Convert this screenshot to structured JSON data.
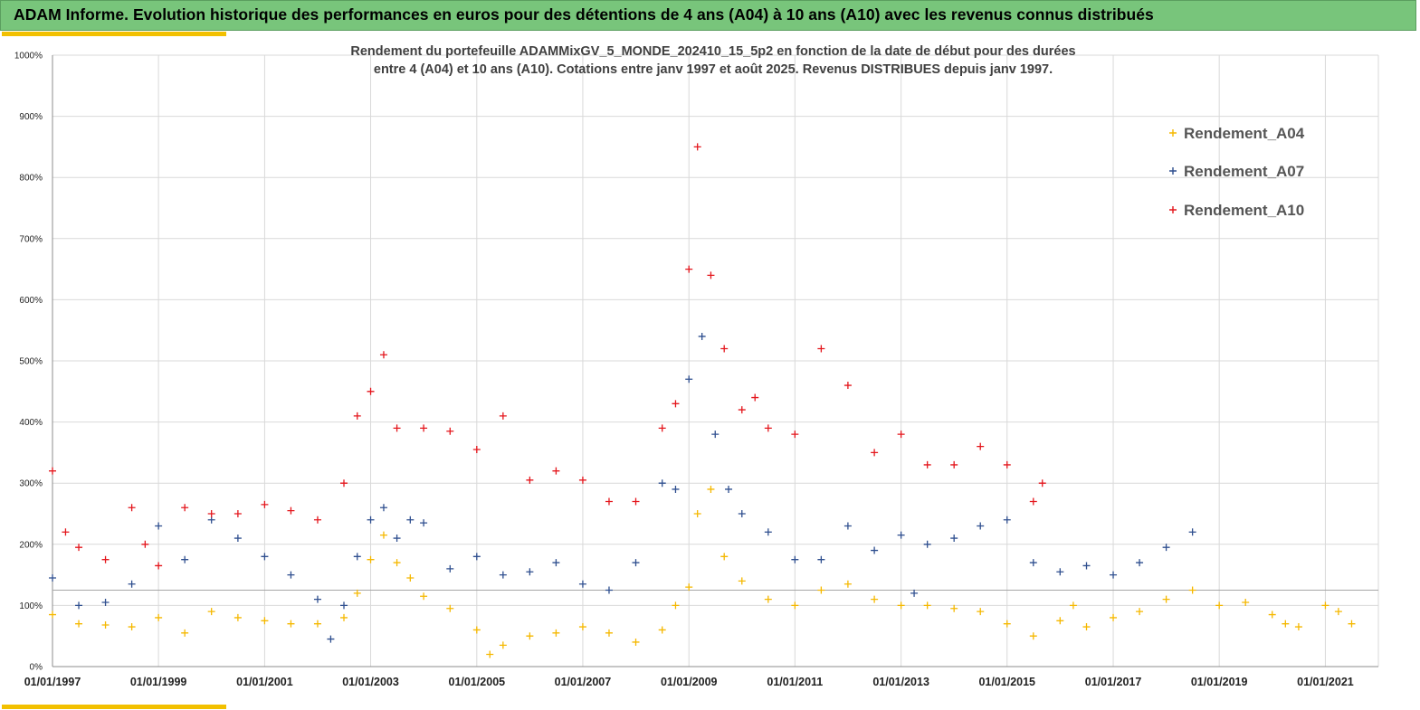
{
  "banner": {
    "title": "ADAM Informe. Evolution historique des performances en euros pour des détentions de 4 ans (A04) à 10 ans (A10) avec les revenus connus distribués",
    "background": "#78c57b",
    "accent": "#f2c000"
  },
  "chart_data": {
    "type": "scatter",
    "title_lines": [
      "Rendement du portefeuille ADAMMixGV_5_MONDE_202410_15_5p2 en fonction de la date de début pour des durées",
      "entre 4 (A04) et 10 ans (A10). Cotations entre janv 1997 et août 2025. Revenus DISTRIBUES depuis janv 1997."
    ],
    "marker": "+",
    "xlabel": "",
    "ylabel": "",
    "x_domain": [
      "1997-01-01",
      "2022-01-01"
    ],
    "ylim": [
      0,
      1000
    ],
    "y_unit": "%",
    "y_ticks": [
      0,
      100,
      200,
      300,
      400,
      500,
      600,
      700,
      800,
      900,
      1000
    ],
    "y_tick_labels": [
      "0%",
      "100%",
      "200%",
      "300%",
      "400%",
      "500%",
      "600%",
      "700%",
      "800%",
      "900%",
      "1000%"
    ],
    "x_tick_dates": [
      "1997-01-01",
      "1999-01-01",
      "2001-01-01",
      "2003-01-01",
      "2005-01-01",
      "2007-01-01",
      "2009-01-01",
      "2011-01-01",
      "2013-01-01",
      "2015-01-01",
      "2017-01-01",
      "2019-01-01",
      "2021-01-01"
    ],
    "x_tick_labels": [
      "01/01/1997",
      "01/01/1999",
      "01/01/2001",
      "01/01/2003",
      "01/01/2005",
      "01/01/2007",
      "01/01/2009",
      "01/01/2011",
      "01/01/2013",
      "01/01/2015",
      "01/01/2017",
      "01/01/2019",
      "01/01/2021"
    ],
    "reference_line_y": 125,
    "grid": true,
    "legend_position": "top-right",
    "series": [
      {
        "name": "Rendement_A04",
        "color": "#f5b800",
        "x": [
          "1997-01-01",
          "1997-07-01",
          "1998-01-01",
          "1998-07-01",
          "1999-01-01",
          "1999-07-01",
          "2000-01-01",
          "2000-07-01",
          "2001-01-01",
          "2001-07-01",
          "2002-01-01",
          "2002-07-01",
          "2002-10-01",
          "2003-01-01",
          "2003-04-01",
          "2003-07-01",
          "2003-10-01",
          "2004-01-01",
          "2004-07-01",
          "2005-01-01",
          "2005-04-01",
          "2005-07-01",
          "2006-01-01",
          "2006-07-01",
          "2007-01-01",
          "2007-07-01",
          "2008-01-01",
          "2008-07-01",
          "2008-10-01",
          "2009-01-01",
          "2009-03-01",
          "2009-06-01",
          "2009-09-01",
          "2010-01-01",
          "2010-07-01",
          "2011-01-01",
          "2011-07-01",
          "2012-01-01",
          "2012-07-01",
          "2013-01-01",
          "2013-07-01",
          "2014-01-01",
          "2014-07-01",
          "2015-01-01",
          "2015-07-01",
          "2016-01-01",
          "2016-04-01",
          "2016-07-01",
          "2017-01-01",
          "2017-07-01",
          "2018-01-01",
          "2018-07-01",
          "2019-01-01",
          "2019-07-01",
          "2020-01-01",
          "2020-04-01",
          "2020-07-01",
          "2021-01-01",
          "2021-04-01",
          "2021-07-01"
        ],
        "y": [
          85,
          70,
          68,
          65,
          80,
          55,
          90,
          80,
          75,
          70,
          70,
          80,
          120,
          175,
          215,
          170,
          145,
          115,
          95,
          60,
          20,
          35,
          50,
          55,
          65,
          55,
          40,
          60,
          100,
          130,
          250,
          290,
          180,
          140,
          110,
          100,
          125,
          135,
          110,
          100,
          100,
          95,
          90,
          70,
          50,
          75,
          100,
          65,
          80,
          90,
          110,
          125,
          100,
          105,
          85,
          70,
          65,
          100,
          90,
          70
        ]
      },
      {
        "name": "Rendement_A07",
        "color": "#2f4f8f",
        "x": [
          "1997-01-01",
          "1997-07-01",
          "1998-01-01",
          "1998-07-01",
          "1999-01-01",
          "1999-07-01",
          "2000-01-01",
          "2000-07-01",
          "2001-01-01",
          "2001-07-01",
          "2002-01-01",
          "2002-04-01",
          "2002-07-01",
          "2002-10-01",
          "2003-01-01",
          "2003-04-01",
          "2003-07-01",
          "2003-10-01",
          "2004-01-01",
          "2004-07-01",
          "2005-01-01",
          "2005-07-01",
          "2006-01-01",
          "2006-07-01",
          "2007-01-01",
          "2007-07-01",
          "2008-01-01",
          "2008-07-01",
          "2008-10-01",
          "2009-01-01",
          "2009-04-01",
          "2009-07-01",
          "2009-10-01",
          "2010-01-01",
          "2010-07-01",
          "2011-01-01",
          "2011-07-01",
          "2012-01-01",
          "2012-07-01",
          "2013-01-01",
          "2013-04-01",
          "2013-07-01",
          "2014-01-01",
          "2014-07-01",
          "2015-01-01",
          "2015-07-01",
          "2016-01-01",
          "2016-07-01",
          "2017-01-01",
          "2017-07-01",
          "2018-01-01",
          "2018-07-01"
        ],
        "y": [
          145,
          100,
          105,
          135,
          230,
          175,
          240,
          210,
          180,
          150,
          110,
          45,
          100,
          180,
          240,
          260,
          210,
          240,
          235,
          160,
          180,
          150,
          155,
          170,
          135,
          125,
          170,
          300,
          290,
          470,
          540,
          380,
          290,
          250,
          220,
          175,
          175,
          230,
          190,
          215,
          120,
          200,
          210,
          230,
          240,
          170,
          155,
          165,
          150,
          170,
          195,
          220
        ]
      },
      {
        "name": "Rendement_A10",
        "color": "#e4161c",
        "x": [
          "1997-01-01",
          "1997-04-01",
          "1997-07-01",
          "1998-01-01",
          "1998-07-01",
          "1998-10-01",
          "1999-01-01",
          "1999-07-01",
          "2000-01-01",
          "2000-07-01",
          "2001-01-01",
          "2001-07-01",
          "2002-01-01",
          "2002-07-01",
          "2002-10-01",
          "2003-01-01",
          "2003-04-01",
          "2003-07-01",
          "2004-01-01",
          "2004-07-01",
          "2005-01-01",
          "2005-07-01",
          "2006-01-01",
          "2006-07-01",
          "2007-01-01",
          "2007-07-01",
          "2008-01-01",
          "2008-07-01",
          "2008-10-01",
          "2009-01-01",
          "2009-03-01",
          "2009-06-01",
          "2009-09-01",
          "2010-01-01",
          "2010-04-01",
          "2010-07-01",
          "2011-01-01",
          "2011-07-01",
          "2012-01-01",
          "2012-07-01",
          "2013-01-01",
          "2013-07-01",
          "2014-01-01",
          "2014-07-01",
          "2015-01-01",
          "2015-07-01",
          "2015-09-01"
        ],
        "y": [
          320,
          220,
          195,
          175,
          260,
          200,
          165,
          260,
          250,
          250,
          265,
          255,
          240,
          300,
          410,
          450,
          510,
          390,
          390,
          385,
          355,
          410,
          305,
          320,
          305,
          270,
          270,
          390,
          430,
          650,
          850,
          640,
          520,
          420,
          440,
          390,
          380,
          520,
          460,
          350,
          380,
          330,
          330,
          360,
          330,
          270,
          300
        ]
      }
    ]
  }
}
